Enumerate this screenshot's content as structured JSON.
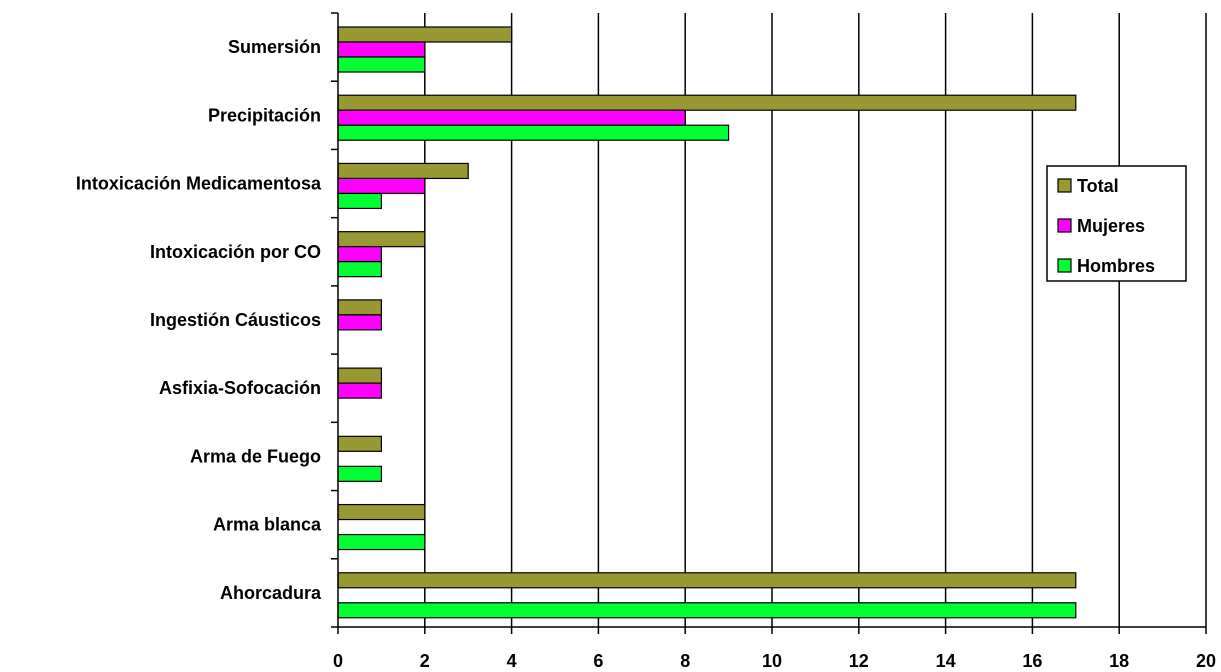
{
  "chart_data": {
    "type": "bar",
    "orientation": "horizontal",
    "categories": [
      "Sumersión",
      "Precipitación",
      "Intoxicación Medicamentosa",
      "Intoxicación por CO",
      "Ingestión Cáusticos",
      "Asfixia-Sofocación",
      "Arma de Fuego",
      "Arma blanca",
      "Ahorcadura"
    ],
    "series": [
      {
        "name": "Total",
        "color": "#999933",
        "values": [
          4,
          17,
          3,
          2,
          1,
          1,
          1,
          2,
          17
        ]
      },
      {
        "name": "Mujeres",
        "color": "#FF00FF",
        "values": [
          2,
          8,
          2,
          1,
          1,
          1,
          0,
          0,
          0
        ]
      },
      {
        "name": "Hombres",
        "color": "#00FF33",
        "values": [
          2,
          9,
          1,
          1,
          0,
          0,
          1,
          2,
          17
        ]
      }
    ],
    "x_ticks": [
      "0",
      "2",
      "4",
      "6",
      "8",
      "10",
      "12",
      "14",
      "16",
      "18",
      "20"
    ],
    "xlim": [
      0,
      20
    ],
    "grid": true,
    "legend_position": "right"
  }
}
